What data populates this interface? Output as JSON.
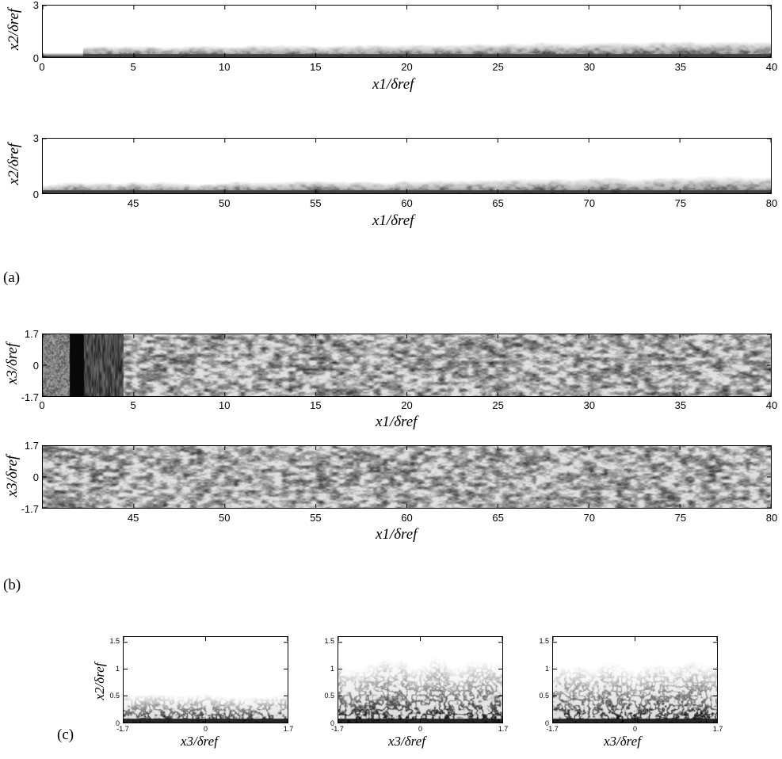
{
  "panel_tags": {
    "a": "(a)",
    "b": "(b)",
    "c": "(c)"
  },
  "chart_data": [
    {
      "id": "a-top",
      "type": "heatmap",
      "xlabel": "x1/δref",
      "ylabel": "x2/δref",
      "xlim": [
        0,
        40
      ],
      "ylim": [
        0,
        3
      ],
      "xticks": [
        "0",
        "5",
        "10",
        "15",
        "20",
        "25",
        "30",
        "35",
        "40"
      ],
      "yticks": [
        "0",
        "3"
      ],
      "colormap": "grayscale",
      "colors": {
        "low": "#ffffff",
        "high": "#000000"
      }
    },
    {
      "id": "a-bottom",
      "type": "heatmap",
      "xlabel": "x1/δref",
      "ylabel": "x2/δref",
      "xlim": [
        40,
        80
      ],
      "ylim": [
        0,
        3
      ],
      "xticks": [
        "45",
        "50",
        "55",
        "60",
        "65",
        "70",
        "75",
        "80"
      ],
      "yticks": [
        "0",
        "3"
      ],
      "colormap": "grayscale",
      "colors": {
        "low": "#ffffff",
        "high": "#000000"
      }
    },
    {
      "id": "b-top",
      "type": "heatmap",
      "xlabel": "x1/δref",
      "ylabel": "x3/δref",
      "xlim": [
        0,
        40
      ],
      "ylim": [
        -1.7,
        1.7
      ],
      "xticks": [
        "0",
        "5",
        "10",
        "15",
        "20",
        "25",
        "30",
        "35",
        "40"
      ],
      "yticks": [
        "-1.7",
        "0",
        "1.7"
      ],
      "colormap": "grayscale",
      "colors": {
        "low": "#ffffff",
        "high": "#000000"
      }
    },
    {
      "id": "b-bottom",
      "type": "heatmap",
      "xlabel": "x1/δref",
      "ylabel": "x3/δref",
      "xlim": [
        40,
        80
      ],
      "ylim": [
        -1.7,
        1.7
      ],
      "xticks": [
        "45",
        "50",
        "55",
        "60",
        "65",
        "70",
        "75",
        "80"
      ],
      "yticks": [
        "-1.7",
        "0",
        "1.7"
      ],
      "colormap": "grayscale",
      "colors": {
        "low": "#ffffff",
        "high": "#000000"
      }
    },
    {
      "id": "c-1",
      "type": "heatmap",
      "xlabel": "x3/δref",
      "ylabel": "x2/δref",
      "xlim": [
        -1.7,
        1.7
      ],
      "ylim": [
        0,
        1.6
      ],
      "xticks": [
        "-1.7",
        "0",
        "1.7"
      ],
      "yticks": [
        "0",
        "0.5",
        "1",
        "1.5"
      ],
      "colormap": "grayscale",
      "colors": {
        "low": "#ffffff",
        "high": "#000000"
      }
    },
    {
      "id": "c-2",
      "type": "heatmap",
      "xlabel": "x3/δref",
      "ylabel": "",
      "xlim": [
        -1.7,
        1.7
      ],
      "ylim": [
        0,
        1.6
      ],
      "xticks": [
        "-1.7",
        "0",
        "1.7"
      ],
      "yticks": [
        "0",
        "0.5",
        "1",
        "1.5"
      ],
      "colormap": "grayscale",
      "colors": {
        "low": "#ffffff",
        "high": "#000000"
      }
    },
    {
      "id": "c-3",
      "type": "heatmap",
      "xlabel": "x3/δref",
      "ylabel": "",
      "xlim": [
        -1.7,
        1.7
      ],
      "ylim": [
        0,
        1.6
      ],
      "xticks": [
        "-1.7",
        "0",
        "1.7"
      ],
      "yticks": [
        "0",
        "0.5",
        "1",
        "1.5"
      ],
      "colormap": "grayscale",
      "colors": {
        "low": "#ffffff",
        "high": "#000000"
      }
    }
  ]
}
